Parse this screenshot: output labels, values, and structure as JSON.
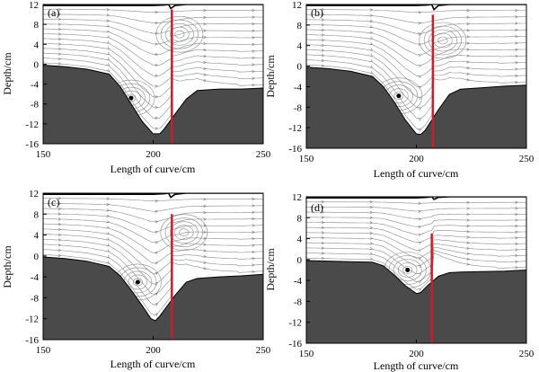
{
  "chart_data": [
    {
      "panel_label": "(a)",
      "type": "line",
      "title": "",
      "xlabel": "Length of curve/cm",
      "ylabel": "Depth/cm",
      "xlim": [
        150,
        250
      ],
      "ylim": [
        -16,
        12
      ],
      "xticks": [
        150,
        200,
        250
      ],
      "yticks": [
        12,
        8,
        4,
        0,
        -4,
        -8,
        -12,
        -16
      ],
      "bed_profile": {
        "x": [
          150,
          160,
          170,
          180,
          185,
          190,
          195,
          200,
          203,
          205,
          210,
          215,
          220,
          230,
          240,
          250
        ],
        "y": [
          -0.2,
          -0.5,
          -1.0,
          -2.0,
          -4.5,
          -8.0,
          -11.5,
          -14.0,
          -14.0,
          -13.0,
          -10.0,
          -7.0,
          -5.3,
          -5.0,
          -5.0,
          -4.8
        ]
      },
      "water_surface": {
        "x": [
          150,
          200,
          205,
          207,
          208,
          210,
          215,
          230,
          250
        ],
        "y": [
          11.8,
          11.8,
          11.9,
          12.0,
          11.2,
          11.8,
          12.0,
          12.0,
          12.0
        ]
      },
      "vortex_centers": [
        {
          "x": 190,
          "y": -6.8
        },
        {
          "x": 212,
          "y": 6.0
        }
      ],
      "red_line": {
        "x": 208.5,
        "y_top": 11.0,
        "y_bottom": -16
      }
    },
    {
      "panel_label": "(b)",
      "type": "line",
      "title": "",
      "xlabel": "Length of curve/cm",
      "ylabel": "Depth/cm",
      "xlim": [
        150,
        250
      ],
      "ylim": [
        -16,
        12
      ],
      "xticks": [
        150,
        200,
        250
      ],
      "yticks": [
        12,
        8,
        4,
        0,
        -4,
        -8,
        -12,
        -16
      ],
      "bed_profile": {
        "x": [
          150,
          160,
          170,
          180,
          185,
          190,
          195,
          200,
          202,
          204,
          210,
          215,
          220,
          230,
          240,
          250
        ],
        "y": [
          -0.2,
          -0.5,
          -1.0,
          -2.0,
          -4.0,
          -7.0,
          -10.5,
          -13.2,
          -13.3,
          -12.5,
          -8.5,
          -5.5,
          -4.5,
          -4.2,
          -3.9,
          -3.7
        ]
      },
      "water_surface": {
        "x": [
          150,
          200,
          205,
          207,
          208,
          210,
          215,
          230,
          250
        ],
        "y": [
          11.8,
          11.8,
          11.9,
          12.0,
          11.0,
          11.8,
          12.0,
          12.0,
          12.0
        ]
      },
      "vortex_centers": [
        {
          "x": 192,
          "y": -5.8
        },
        {
          "x": 212,
          "y": 5.0
        }
      ],
      "red_line": {
        "x": 207.5,
        "y_top": 10.0,
        "y_bottom": -16
      }
    },
    {
      "panel_label": "(c)",
      "type": "line",
      "title": "",
      "xlabel": "Length of curve/cm",
      "ylabel": "Depth/cm",
      "xlim": [
        150,
        250
      ],
      "ylim": [
        -16,
        12
      ],
      "xticks": [
        150,
        200,
        250
      ],
      "yticks": [
        12,
        8,
        4,
        0,
        -4,
        -8,
        -12,
        -16
      ],
      "bed_profile": {
        "x": [
          150,
          160,
          170,
          180,
          185,
          190,
          195,
          199,
          201,
          203,
          210,
          215,
          220,
          230,
          240,
          250
        ],
        "y": [
          -0.2,
          -0.5,
          -1.0,
          -2.0,
          -3.8,
          -6.5,
          -9.5,
          -12.0,
          -12.4,
          -11.5,
          -7.5,
          -5.0,
          -4.3,
          -4.0,
          -3.8,
          -3.5
        ]
      },
      "water_surface": {
        "x": [
          150,
          200,
          205,
          207,
          208,
          210,
          215,
          230,
          250
        ],
        "y": [
          11.8,
          11.8,
          11.9,
          12.0,
          11.2,
          11.8,
          12.0,
          12.0,
          12.0
        ]
      },
      "vortex_centers": [
        {
          "x": 193,
          "y": -5.0
        },
        {
          "x": 214,
          "y": 4.5
        }
      ],
      "red_line": {
        "x": 208.5,
        "y_top": 8.0,
        "y_bottom": -16
      }
    },
    {
      "panel_label": "(d)",
      "type": "line",
      "title": "",
      "xlabel": "Length of curve/cm",
      "ylabel": "Depth/cm",
      "xlim": [
        150,
        250
      ],
      "ylim": [
        -16,
        12
      ],
      "xticks": [
        150,
        200,
        250
      ],
      "yticks": [
        12,
        8,
        4,
        0,
        -4,
        -8,
        -12,
        -16
      ],
      "bed_profile": {
        "x": [
          150,
          160,
          170,
          180,
          185,
          190,
          195,
          200,
          202,
          205,
          210,
          215,
          220,
          230,
          240,
          250
        ],
        "y": [
          -0.2,
          -0.3,
          -0.4,
          -0.5,
          -1.2,
          -3.0,
          -5.0,
          -6.5,
          -6.3,
          -5.0,
          -3.2,
          -2.5,
          -2.4,
          -2.3,
          -2.2,
          -2.0
        ]
      },
      "water_surface": {
        "x": [
          150,
          200,
          205,
          207,
          208,
          210,
          215,
          230,
          250
        ],
        "y": [
          11.8,
          11.8,
          11.9,
          12.0,
          11.5,
          11.9,
          12.0,
          12.0,
          12.0
        ]
      },
      "vortex_centers": [
        {
          "x": 196,
          "y": -2.0
        }
      ],
      "red_line": {
        "x": 207.0,
        "y_top": 5.0,
        "y_bottom": -16
      }
    }
  ],
  "colors": {
    "bed": "#4a4a4a",
    "red_line": "#c8202b",
    "stream": "#8a8a8a",
    "axis": "#000000"
  }
}
